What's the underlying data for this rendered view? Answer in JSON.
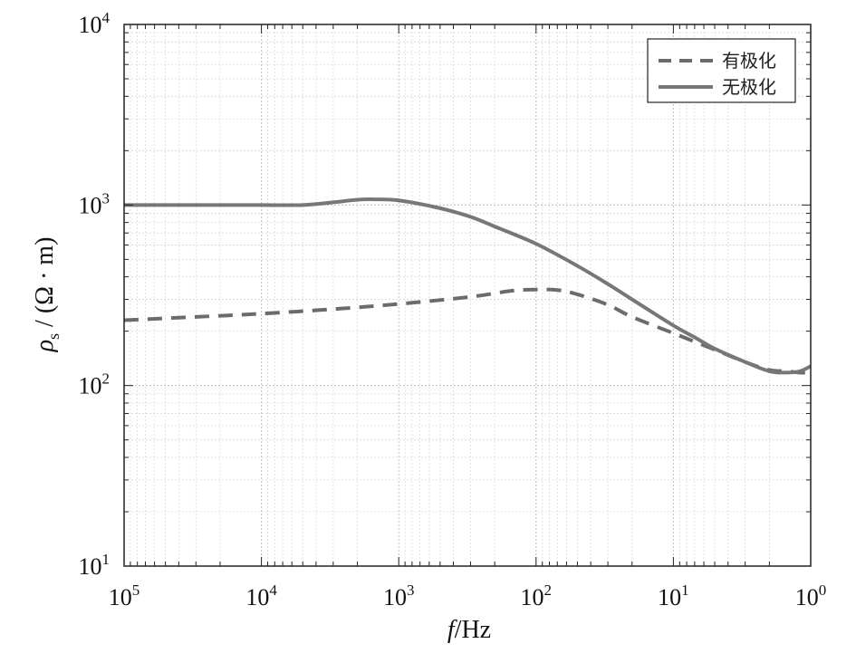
{
  "chart_data": {
    "type": "line",
    "xlabel": {
      "var": "f",
      "unit": "/Hz"
    },
    "ylabel": {
      "rho": "ρ",
      "sub": "s",
      "unit": " / (Ω · m)"
    },
    "x_scale": "log",
    "y_scale": "log",
    "x_reversed": true,
    "xlim": [
      100000,
      1
    ],
    "ylim": [
      10,
      10000
    ],
    "grid": true,
    "minor_grid": true,
    "legend_position": "top-right",
    "x_ticks": [
      {
        "base": "10",
        "exp": "5",
        "value": 100000
      },
      {
        "base": "10",
        "exp": "4",
        "value": 10000
      },
      {
        "base": "10",
        "exp": "3",
        "value": 1000
      },
      {
        "base": "10",
        "exp": "2",
        "value": 100
      },
      {
        "base": "10",
        "exp": "1",
        "value": 10
      },
      {
        "base": "10",
        "exp": "0",
        "value": 1
      }
    ],
    "y_ticks": [
      {
        "base": "10",
        "exp": "1",
        "value": 10
      },
      {
        "base": "10",
        "exp": "2",
        "value": 100
      },
      {
        "base": "10",
        "exp": "3",
        "value": 1000
      },
      {
        "base": "10",
        "exp": "4",
        "value": 10000
      }
    ],
    "series": [
      {
        "name": "有极化",
        "style": "dashed",
        "color": "#6b6b6b",
        "x": [
          100000,
          30000,
          10000,
          3000,
          1000,
          300,
          150,
          100,
          70,
          50,
          30,
          20,
          10,
          7,
          5,
          3,
          2,
          1.5,
          1.2,
          1
        ],
        "y": [
          230,
          240,
          250,
          265,
          283,
          310,
          335,
          340,
          338,
          320,
          280,
          240,
          195,
          175,
          158,
          135,
          122,
          120,
          118,
          118
        ]
      },
      {
        "name": "无极化",
        "style": "solid",
        "color": "#777777",
        "x": [
          100000,
          30000,
          10000,
          5000,
          3000,
          2000,
          1500,
          1000,
          500,
          300,
          200,
          100,
          50,
          30,
          20,
          10,
          7,
          5,
          3,
          2,
          1.5,
          1.2,
          1
        ],
        "y": [
          1000,
          1000,
          1000,
          1000,
          1035,
          1070,
          1075,
          1060,
          960,
          860,
          760,
          610,
          460,
          365,
          300,
          215,
          185,
          160,
          135,
          120,
          118,
          120,
          128
        ]
      }
    ]
  }
}
